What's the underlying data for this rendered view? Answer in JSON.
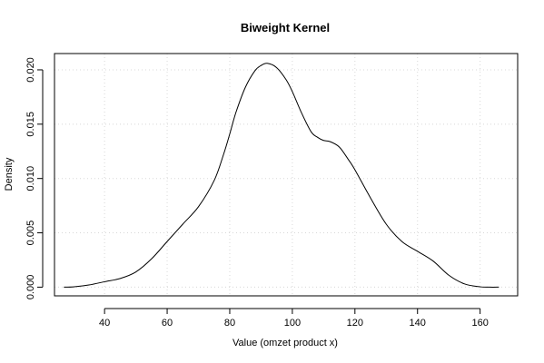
{
  "chart_data": {
    "type": "line",
    "title": "Biweight Kernel",
    "xlabel": "Value (omzet product x)",
    "ylabel": "Density",
    "xlim": [
      24,
      172
    ],
    "ylim": [
      -0.0008,
      0.0215
    ],
    "x_ticks": [
      40,
      60,
      80,
      100,
      120,
      140,
      160
    ],
    "y_ticks": [
      0.0,
      0.005,
      0.01,
      0.015,
      0.02
    ],
    "x_tick_labels": [
      "40",
      "60",
      "80",
      "100",
      "120",
      "140",
      "160"
    ],
    "y_tick_labels": [
      "0.000",
      "0.005",
      "0.010",
      "0.015",
      "0.020"
    ],
    "grid": true,
    "series": [
      {
        "x": [
          27,
          30,
          35,
          40,
          45,
          50,
          55,
          60,
          65,
          70,
          75,
          78,
          80,
          82,
          85,
          88,
          90,
          92,
          95,
          98,
          100,
          103,
          106,
          108,
          110,
          112,
          115,
          118,
          120,
          125,
          130,
          135,
          140,
          145,
          150,
          155,
          160,
          163,
          166
        ],
        "y": [
          0.0,
          2e-05,
          0.0002,
          0.0005,
          0.0008,
          0.0014,
          0.0026,
          0.0042,
          0.0058,
          0.0074,
          0.0098,
          0.0122,
          0.0141,
          0.0161,
          0.0184,
          0.0199,
          0.0204,
          0.0206,
          0.0202,
          0.0191,
          0.018,
          0.016,
          0.0143,
          0.0138,
          0.0135,
          0.0134,
          0.0129,
          0.0117,
          0.0108,
          0.0082,
          0.0058,
          0.0042,
          0.0033,
          0.0024,
          0.0011,
          0.0003,
          3e-05,
          0.0,
          0.0
        ]
      }
    ]
  }
}
